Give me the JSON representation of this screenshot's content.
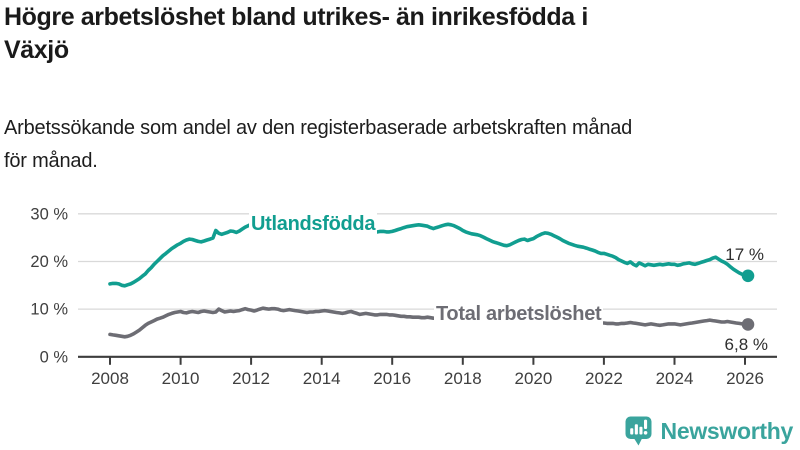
{
  "header": {
    "title_line1": "Högre arbetslöshet bland utrikes- än inrikesfödda i",
    "title_line2": "Växjö",
    "subtitle_line1": "Arbetssökande som andel av den registerbaserade arbetskraften månad",
    "subtitle_line2": "för månad."
  },
  "footer": {
    "brand_name": "Newsworthy",
    "brand_color": "#3aa49d",
    "logo_icon": "speech-bubble-bar-chart-icon"
  },
  "colors": {
    "accent_teal": "#119e90",
    "series_gray": "#6d6d74",
    "axis_text": "#3f3f3f",
    "axis_line": "#3d3d3d",
    "gridline": "#d9d9d9",
    "end_label_text": "#2e2e2e",
    "title_text": "#1a1a1a"
  },
  "chart_data": {
    "type": "line",
    "title": "Högre arbetslöshet bland utrikes- än inrikesfödda i Växjö",
    "subtitle": "Arbetssökande som andel av den registerbaserade arbetskraften månad för månad.",
    "x_unit": "monthly observations",
    "x_start_year": 2008,
    "points_per_year": 12,
    "x_tick_labels": [
      "2008",
      "2010",
      "2012",
      "2014",
      "2016",
      "2018",
      "2020",
      "2022",
      "2024",
      "2026"
    ],
    "y_tick_values": [
      0,
      10,
      20,
      30
    ],
    "y_tick_labels": [
      "0 %",
      "10 %",
      "20 %",
      "30 %"
    ],
    "ylim": [
      0,
      31.5
    ],
    "grid": "horizontal",
    "legend_position": "inline-labels",
    "series": [
      {
        "name": "Utlandsfödda",
        "color": "#119e90",
        "end_label": "17 %",
        "end_value": 17.0,
        "values": [
          15.3,
          15.4,
          15.4,
          15.3,
          15.0,
          14.9,
          15.1,
          15.3,
          15.6,
          16.0,
          16.4,
          16.9,
          17.4,
          18.1,
          18.7,
          19.4,
          20.0,
          20.6,
          21.2,
          21.7,
          22.2,
          22.7,
          23.1,
          23.5,
          23.8,
          24.2,
          24.5,
          24.7,
          24.6,
          24.4,
          24.2,
          24.1,
          24.3,
          24.5,
          24.7,
          24.9,
          26.5,
          25.9,
          25.7,
          25.9,
          26.1,
          26.4,
          26.3,
          26.1,
          26.4,
          26.8,
          27.2,
          27.5,
          27.8,
          27.5,
          27.7,
          27.6,
          27.4,
          27.3,
          27.2,
          27.1,
          27.0,
          26.9,
          26.8,
          26.8,
          26.7,
          26.6,
          26.6,
          26.7,
          26.8,
          26.9,
          26.9,
          26.8,
          26.7,
          26.6,
          26.5,
          26.5,
          26.4,
          26.4,
          26.5,
          26.6,
          26.7,
          26.7,
          26.6,
          26.5,
          26.4,
          26.4,
          26.5,
          26.5,
          26.4,
          26.3,
          26.3,
          26.4,
          26.4,
          26.3,
          26.2,
          26.2,
          26.3,
          26.3,
          26.2,
          26.2,
          26.3,
          26.5,
          26.7,
          26.9,
          27.1,
          27.3,
          27.4,
          27.5,
          27.6,
          27.7,
          27.6,
          27.5,
          27.4,
          27.1,
          26.9,
          27.1,
          27.3,
          27.5,
          27.7,
          27.8,
          27.7,
          27.5,
          27.2,
          26.9,
          26.5,
          26.2,
          26.0,
          25.8,
          25.7,
          25.6,
          25.4,
          25.1,
          24.8,
          24.5,
          24.2,
          24.0,
          23.8,
          23.6,
          23.4,
          23.3,
          23.5,
          23.8,
          24.1,
          24.4,
          24.6,
          24.7,
          24.4,
          24.6,
          24.8,
          25.2,
          25.5,
          25.8,
          26.0,
          25.9,
          25.7,
          25.4,
          25.1,
          24.8,
          24.4,
          24.1,
          23.8,
          23.6,
          23.4,
          23.2,
          23.1,
          23.0,
          22.8,
          22.6,
          22.4,
          22.2,
          21.9,
          21.7,
          21.7,
          21.5,
          21.3,
          21.1,
          20.8,
          20.4,
          20.1,
          19.8,
          19.6,
          19.9,
          19.4,
          19.1,
          19.7,
          19.4,
          19.1,
          19.4,
          19.3,
          19.2,
          19.3,
          19.4,
          19.3,
          19.4,
          19.5,
          19.4,
          19.4,
          19.2,
          19.3,
          19.5,
          19.6,
          19.7,
          19.5,
          19.4,
          19.6,
          19.8,
          20.0,
          20.2,
          20.4,
          20.7,
          20.9,
          20.5,
          20.1,
          19.8,
          19.4,
          18.9,
          18.4,
          18.0,
          17.6,
          17.3,
          17.1,
          17.0
        ]
      },
      {
        "name": "Total arbetslöshet",
        "color": "#6d6d74",
        "end_label": "6,8 %",
        "end_value": 6.8,
        "values": [
          4.7,
          4.6,
          4.5,
          4.4,
          4.3,
          4.2,
          4.3,
          4.5,
          4.8,
          5.2,
          5.6,
          6.1,
          6.6,
          7.0,
          7.3,
          7.6,
          7.9,
          8.1,
          8.3,
          8.6,
          8.9,
          9.1,
          9.3,
          9.4,
          9.5,
          9.3,
          9.2,
          9.4,
          9.5,
          9.4,
          9.3,
          9.5,
          9.6,
          9.5,
          9.4,
          9.3,
          9.4,
          10.0,
          9.7,
          9.4,
          9.5,
          9.6,
          9.5,
          9.6,
          9.7,
          9.9,
          10.1,
          9.9,
          9.8,
          9.6,
          9.8,
          10.0,
          10.2,
          10.1,
          10.0,
          10.1,
          10.1,
          10.0,
          9.8,
          9.7,
          9.8,
          9.9,
          9.8,
          9.7,
          9.6,
          9.5,
          9.4,
          9.3,
          9.4,
          9.4,
          9.5,
          9.5,
          9.6,
          9.7,
          9.6,
          9.5,
          9.4,
          9.3,
          9.2,
          9.1,
          9.2,
          9.4,
          9.5,
          9.3,
          9.1,
          8.9,
          9.0,
          9.1,
          9.0,
          8.9,
          8.8,
          8.8,
          8.9,
          8.9,
          8.9,
          8.8,
          8.8,
          8.7,
          8.6,
          8.5,
          8.5,
          8.4,
          8.4,
          8.3,
          8.3,
          8.3,
          8.2,
          8.2,
          8.3,
          8.2,
          8.1,
          8.1,
          8.0,
          8.0,
          7.9,
          7.8,
          7.8,
          7.7,
          7.6,
          7.5,
          7.4,
          7.3,
          7.3,
          7.2,
          7.2,
          7.1,
          7.1,
          7.1,
          7.1,
          7.1,
          7.1,
          7.1,
          7.1,
          7.1,
          7.2,
          7.2,
          7.3,
          7.3,
          7.4,
          7.4,
          7.5,
          7.5,
          7.5,
          7.6,
          7.7,
          7.8,
          8.1,
          8.4,
          8.6,
          8.6,
          8.5,
          8.4,
          8.3,
          8.2,
          8.1,
          8.0,
          8.0,
          7.9,
          7.8,
          7.7,
          7.6,
          7.5,
          7.4,
          7.3,
          7.3,
          7.2,
          7.2,
          7.1,
          7.1,
          7.0,
          7.0,
          7.0,
          6.9,
          6.9,
          7.0,
          7.0,
          7.1,
          7.2,
          7.1,
          7.0,
          6.9,
          6.8,
          6.7,
          6.8,
          6.9,
          6.8,
          6.7,
          6.6,
          6.7,
          6.8,
          6.9,
          6.9,
          6.9,
          6.8,
          6.7,
          6.8,
          6.9,
          7.0,
          7.1,
          7.2,
          7.3,
          7.4,
          7.5,
          7.6,
          7.7,
          7.6,
          7.5,
          7.4,
          7.3,
          7.3,
          7.4,
          7.3,
          7.2,
          7.1,
          7.0,
          6.9,
          6.9,
          6.8
        ]
      }
    ]
  }
}
